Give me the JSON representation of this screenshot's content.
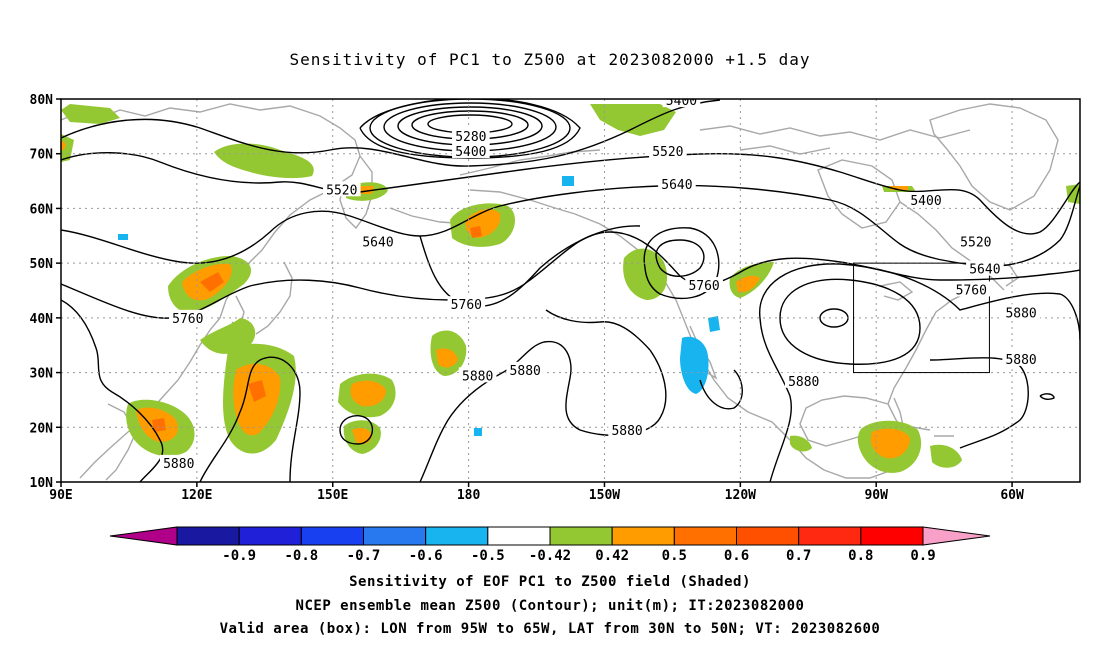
{
  "title": "Sensitivity of PC1 to Z500 at 2023082000 +1.5 day",
  "footer": {
    "line1": "Sensitivity of EOF PC1 to Z500 field (Shaded)",
    "line2": "NCEP ensemble mean Z500 (Contour); unit(m); IT:2023082000",
    "line3": "Valid area (box): LON from 95W to 65W, LAT from 30N to 50N; VT: 2023082600"
  },
  "map": {
    "lon_range": [
      90,
      315
    ],
    "lat_range": [
      10,
      80
    ],
    "lat_ticks": [
      {
        "lat": 80,
        "label": "80N"
      },
      {
        "lat": 70,
        "label": "70N"
      },
      {
        "lat": 60,
        "label": "60N"
      },
      {
        "lat": 50,
        "label": "50N"
      },
      {
        "lat": 40,
        "label": "40N"
      },
      {
        "lat": 30,
        "label": "30N"
      },
      {
        "lat": 20,
        "label": "20N"
      },
      {
        "lat": 10,
        "label": "10N"
      }
    ],
    "lon_ticks": [
      {
        "lon": 90,
        "label": "90E"
      },
      {
        "lon": 120,
        "label": "120E"
      },
      {
        "lon": 150,
        "label": "150E"
      },
      {
        "lon": 180,
        "label": "180"
      },
      {
        "lon": 210,
        "label": "150W"
      },
      {
        "lon": 240,
        "label": "120W"
      },
      {
        "lon": 270,
        "label": "90W"
      },
      {
        "lon": 300,
        "label": "60W"
      }
    ],
    "valid_box": {
      "lon_min": 265,
      "lon_max": 295,
      "lat_min": 30,
      "lat_max": 50
    },
    "contour_labels": [
      {
        "text": "5400",
        "lon": 227,
        "lat": 79.8
      },
      {
        "text": "5280",
        "lon": 180.5,
        "lat": 73.2
      },
      {
        "text": "5400",
        "lon": 180.5,
        "lat": 70.5
      },
      {
        "text": "5520",
        "lon": 224,
        "lat": 70.5
      },
      {
        "text": "5520",
        "lon": 152,
        "lat": 63.5
      },
      {
        "text": "5640",
        "lon": 226,
        "lat": 64.5
      },
      {
        "text": "5400",
        "lon": 281,
        "lat": 61.5
      },
      {
        "text": "5640",
        "lon": 160,
        "lat": 54
      },
      {
        "text": "5520",
        "lon": 292,
        "lat": 54
      },
      {
        "text": "5640",
        "lon": 294,
        "lat": 49
      },
      {
        "text": "5760",
        "lon": 291,
        "lat": 45.2
      },
      {
        "text": "5760",
        "lon": 232,
        "lat": 46
      },
      {
        "text": "5760",
        "lon": 179.5,
        "lat": 42.5
      },
      {
        "text": "5760",
        "lon": 118,
        "lat": 40
      },
      {
        "text": "5880",
        "lon": 302,
        "lat": 41
      },
      {
        "text": "5880",
        "lon": 302,
        "lat": 32.5
      },
      {
        "text": "5880",
        "lon": 182,
        "lat": 29.5
      },
      {
        "text": "5880",
        "lon": 192.5,
        "lat": 30.5
      },
      {
        "text": "5880",
        "lon": 254,
        "lat": 28.5
      },
      {
        "text": "5880",
        "lon": 215,
        "lat": 19.5
      },
      {
        "text": "5880",
        "lon": 116,
        "lat": 13.5
      }
    ]
  },
  "colorbar": {
    "colors": [
      "#b0008a",
      "#1818a0",
      "#2020d8",
      "#1840f0",
      "#2878f0",
      "#18b4f0",
      "#ffffff",
      "#94c832",
      "#ff9c00",
      "#ff7000",
      "#ff5000",
      "#ff2810",
      "#ff0000",
      "#f8a0c8"
    ],
    "labels": [
      "-0.9",
      "-0.8",
      "-0.7",
      "-0.6",
      "-0.5",
      "-0.42",
      "0.42",
      "0.5",
      "0.6",
      "0.7",
      "0.8",
      "0.9"
    ]
  },
  "shading_colors": {
    "light": "#94c832",
    "medium": "#ff9c00",
    "strong": "#ff7000",
    "negative": "#18b4f0"
  }
}
